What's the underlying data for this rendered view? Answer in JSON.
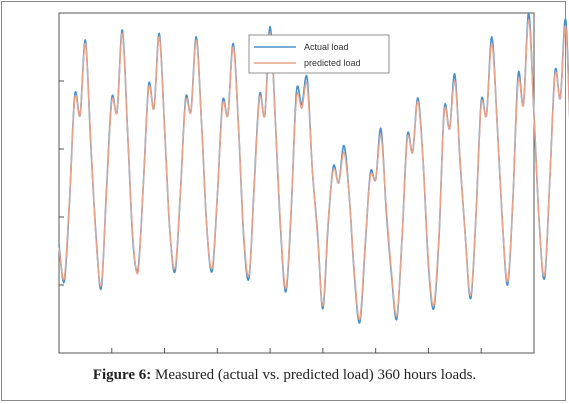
{
  "chart_data": {
    "type": "line",
    "title": "",
    "xlabel": "",
    "ylabel": "",
    "xlim": [
      0,
      360
    ],
    "ylim": [
      0,
      10
    ],
    "grid": false,
    "legend_position": "top-right",
    "x_step": 4,
    "series": [
      {
        "name": "Actual load",
        "color": "#4a90c8",
        "values": [
          3.2,
          2.1,
          4.5,
          7.6,
          7.0,
          9.2,
          6.2,
          3.5,
          1.9,
          4.8,
          7.5,
          7.1,
          9.5,
          6.5,
          3.3,
          2.5,
          5.0,
          7.9,
          7.2,
          9.4,
          6.6,
          3.6,
          2.4,
          4.7,
          7.5,
          7.1,
          9.3,
          6.8,
          3.7,
          2.4,
          4.6,
          7.4,
          7.0,
          9.1,
          6.7,
          3.4,
          2.2,
          5.0,
          7.6,
          7.0,
          9.6,
          6.8,
          3.6,
          1.8,
          4.2,
          7.7,
          7.3,
          8.1,
          5.4,
          3.5,
          1.3,
          3.8,
          5.5,
          5.0,
          6.1,
          4.6,
          2.2,
          0.9,
          3.1,
          5.3,
          5.1,
          6.6,
          4.2,
          2.3,
          1.0,
          3.4,
          6.4,
          5.9,
          7.5,
          5.6,
          2.6,
          1.3,
          3.4,
          7.2,
          6.6,
          8.2,
          5.6,
          3.4,
          1.6,
          4.0,
          7.4,
          7.0,
          9.3,
          6.8,
          3.9,
          2.0,
          4.5,
          8.2,
          7.3,
          10.0,
          7.0,
          3.8,
          2.2,
          5.1,
          8.3,
          7.5,
          9.8,
          6.0,
          2.9,
          4.7
        ]
      },
      {
        "name": "predicted load",
        "color": "#e8a48a",
        "values": [
          3.1,
          2.2,
          4.6,
          7.5,
          7.0,
          9.1,
          6.3,
          3.4,
          2.0,
          4.7,
          7.4,
          7.1,
          9.4,
          6.5,
          3.4,
          2.4,
          5.0,
          7.8,
          7.2,
          9.3,
          6.6,
          3.6,
          2.5,
          4.7,
          7.4,
          7.1,
          9.2,
          6.8,
          3.7,
          2.5,
          4.6,
          7.3,
          7.0,
          9.0,
          6.7,
          3.5,
          2.3,
          4.9,
          7.5,
          7.0,
          9.4,
          6.8,
          3.7,
          1.9,
          4.3,
          7.5,
          7.2,
          7.9,
          5.4,
          3.4,
          1.4,
          3.9,
          5.4,
          5.0,
          5.9,
          4.6,
          2.3,
          1.0,
          3.2,
          5.2,
          5.1,
          6.4,
          4.3,
          2.4,
          1.1,
          3.4,
          6.3,
          5.9,
          7.4,
          5.6,
          2.7,
          1.4,
          3.5,
          7.1,
          6.6,
          8.0,
          5.7,
          3.4,
          1.7,
          4.0,
          7.3,
          7.0,
          9.1,
          6.8,
          3.9,
          2.1,
          4.5,
          8.0,
          7.3,
          9.8,
          7.0,
          3.8,
          2.3,
          5.1,
          8.2,
          7.5,
          9.6,
          6.0,
          3.0,
          4.8
        ]
      }
    ],
    "caption_label": "Figure 6:",
    "caption_text": " Measured (actual vs. predicted load) 360 hours loads."
  }
}
